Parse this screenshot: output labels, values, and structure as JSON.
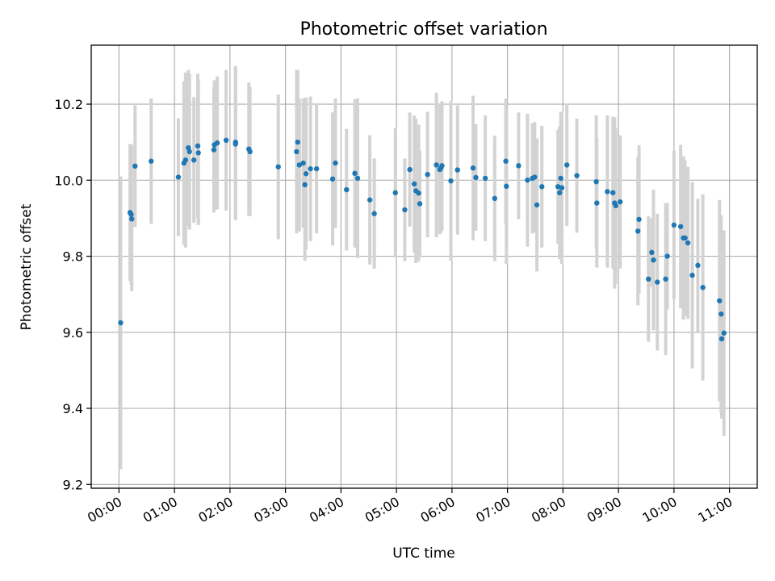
{
  "chart_data": {
    "type": "scatter",
    "title": "Photometric offset variation",
    "xlabel": "UTC time",
    "ylabel": "Photometric offset",
    "xlim": [
      -0.5,
      11.5
    ],
    "ylim": [
      9.19,
      10.355
    ],
    "grid": true,
    "x_ticks": [
      0,
      1,
      2,
      3,
      4,
      5,
      6,
      7,
      8,
      9,
      10,
      11
    ],
    "x_tick_labels": [
      "00:00",
      "01:00",
      "02:00",
      "03:00",
      "04:00",
      "05:00",
      "06:00",
      "07:00",
      "08:00",
      "09:00",
      "10:00",
      "11:00"
    ],
    "y_ticks": [
      9.2,
      9.4,
      9.6,
      9.8,
      10.0,
      10.2
    ],
    "y_tick_labels": [
      "9.2",
      "9.4",
      "9.6",
      "9.8",
      "10.0",
      "10.2"
    ],
    "colors": {
      "point": "#1f77b4",
      "errorbar": "#d3d3d3",
      "grid": "#b0b0b0"
    },
    "x": [
      0.03,
      0.2,
      0.22,
      0.23,
      0.29,
      0.58,
      1.07,
      1.17,
      1.2,
      1.25,
      1.27,
      1.35,
      1.42,
      1.43,
      1.71,
      1.72,
      1.77,
      1.93,
      2.1,
      2.1,
      2.34,
      2.36,
      2.87,
      3.2,
      3.22,
      3.25,
      3.32,
      3.35,
      3.37,
      3.45,
      3.56,
      3.85,
      3.9,
      4.1,
      4.25,
      4.3,
      4.52,
      4.6,
      4.98,
      5.15,
      5.24,
      5.32,
      5.35,
      5.4,
      5.42,
      5.56,
      5.72,
      5.78,
      5.8,
      5.82,
      5.98,
      6.1,
      6.38,
      6.43,
      6.6,
      6.77,
      6.97,
      6.98,
      7.2,
      7.36,
      7.45,
      7.49,
      7.53,
      7.62,
      7.91,
      7.94,
      7.96,
      7.98,
      8.07,
      8.25,
      8.6,
      8.61,
      8.8,
      8.9,
      8.93,
      8.95,
      9.03,
      9.35,
      9.37,
      9.54,
      9.6,
      9.63,
      9.7,
      9.85,
      9.88,
      10.0,
      10.12,
      10.17,
      10.2,
      10.25,
      10.33,
      10.43,
      10.52,
      10.82,
      10.85,
      10.86,
      10.9
    ],
    "y": [
      9.625,
      9.915,
      9.91,
      9.898,
      10.037,
      10.05,
      10.008,
      10.045,
      10.053,
      10.085,
      10.075,
      10.053,
      10.09,
      10.072,
      10.08,
      10.093,
      10.098,
      10.105,
      10.095,
      10.1,
      10.082,
      10.075,
      10.035,
      10.075,
      10.1,
      10.04,
      10.045,
      9.988,
      10.017,
      10.03,
      10.03,
      10.003,
      10.045,
      9.975,
      10.018,
      10.005,
      9.948,
      9.912,
      9.967,
      9.922,
      10.028,
      9.99,
      9.972,
      9.966,
      9.938,
      10.015,
      10.04,
      10.028,
      10.032,
      10.038,
      9.998,
      10.027,
      10.032,
      10.007,
      10.005,
      9.952,
      10.05,
      9.984,
      10.038,
      10.0,
      10.005,
      10.008,
      9.935,
      9.983,
      9.983,
      9.967,
      10.005,
      9.98,
      10.04,
      10.012,
      9.996,
      9.94,
      9.97,
      9.967,
      9.94,
      9.933,
      9.943,
      9.866,
      9.897,
      9.74,
      9.81,
      9.79,
      9.732,
      9.74,
      9.8,
      9.882,
      9.878,
      9.848,
      9.848,
      9.835,
      9.75,
      9.776,
      9.718,
      9.683,
      9.648,
      9.583,
      9.598
    ],
    "error": [
      0.385,
      0.18,
      0.185,
      0.19,
      0.16,
      0.165,
      0.155,
      0.215,
      0.23,
      0.205,
      0.205,
      0.165,
      0.19,
      0.19,
      0.165,
      0.17,
      0.175,
      0.185,
      0.2,
      0.2,
      0.175,
      0.17,
      0.19,
      0.215,
      0.19,
      0.175,
      0.17,
      0.2,
      0.2,
      0.19,
      0.17,
      0.175,
      0.17,
      0.16,
      0.195,
      0.21,
      0.17,
      0.145,
      0.17,
      0.135,
      0.15,
      0.18,
      0.19,
      0.18,
      0.14,
      0.165,
      0.19,
      0.17,
      0.17,
      0.17,
      0.21,
      0.17,
      0.19,
      0.14,
      0.165,
      0.165,
      0.165,
      0.205,
      0.14,
      0.175,
      0.145,
      0.145,
      0.175,
      0.16,
      0.15,
      0.175,
      0.175,
      0.2,
      0.16,
      0.15,
      0.175,
      0.17,
      0.2,
      0.2,
      0.225,
      0.205,
      0.175,
      0.195,
      0.195,
      0.165,
      0.09,
      0.185,
      0.18,
      0.2,
      0.14,
      0.195,
      0.215,
      0.215,
      0.205,
      0.2,
      0.245,
      0.175,
      0.245,
      0.265,
      0.26,
      0.21,
      0.27
    ]
  }
}
